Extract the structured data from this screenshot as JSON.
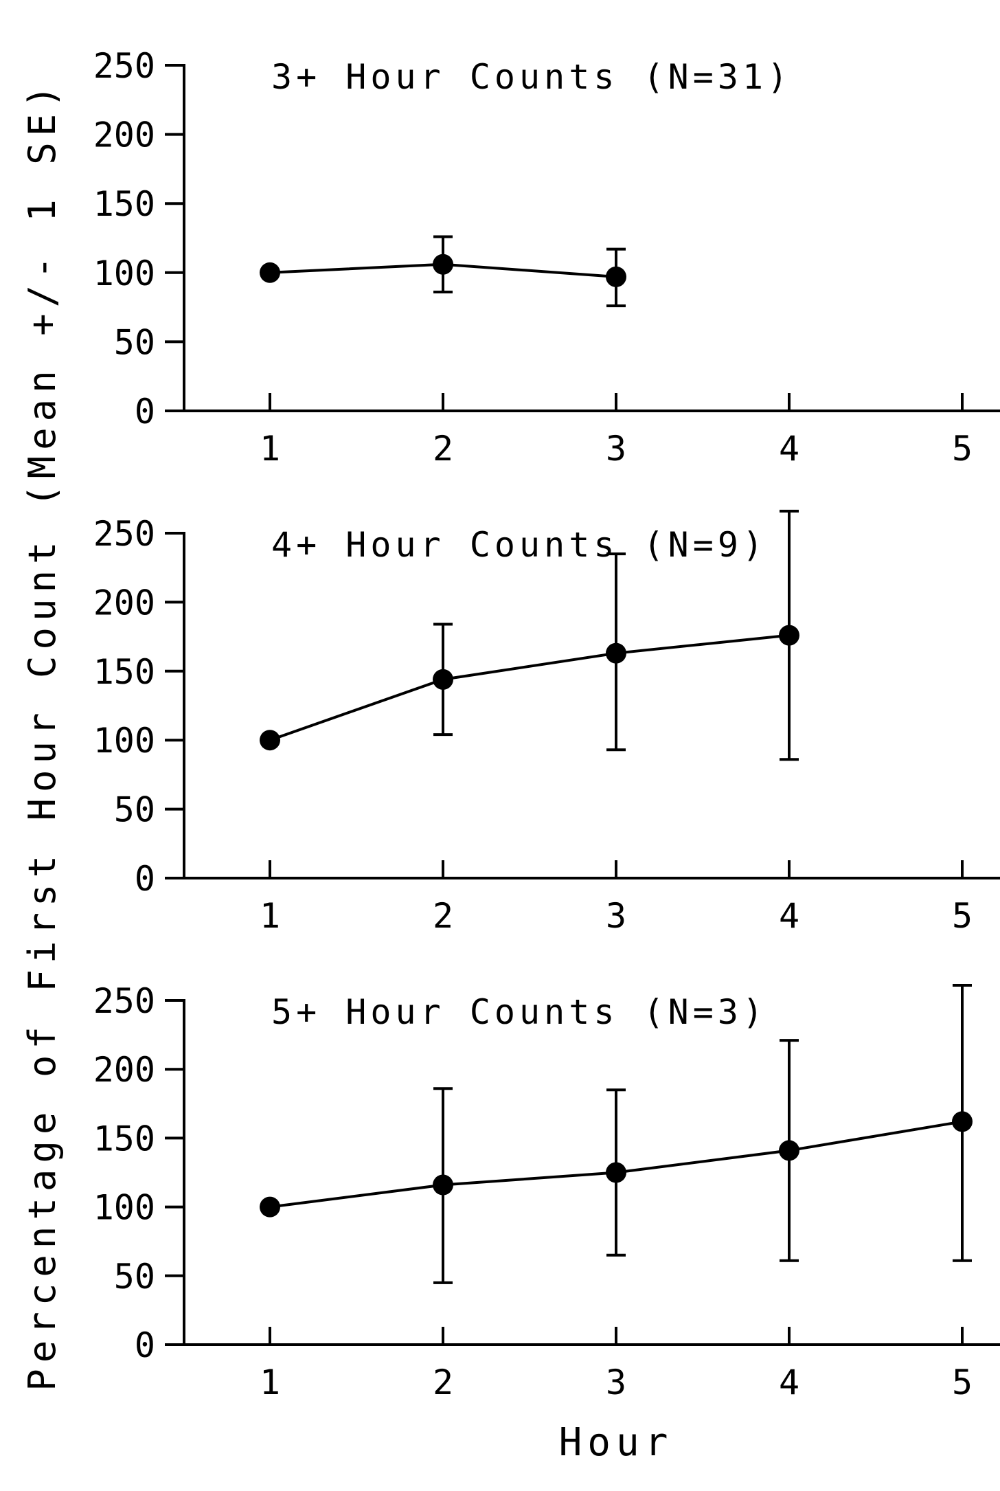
{
  "figure": {
    "ylabel": "Percentage of First Hour Count (Mean +/- 1 SE)",
    "xlabel": "Hour"
  },
  "chart_data": [
    {
      "type": "line",
      "title": "3+ Hour Counts (N=31)",
      "xlabel": "Hour",
      "ylabel": "Percentage of First Hour Count (Mean +/- 1 SE)",
      "x_ticks": [
        "1",
        "2",
        "3",
        "4",
        "5"
      ],
      "y_ticks": [
        "0",
        "50",
        "100",
        "150",
        "200",
        "250"
      ],
      "xlim": [
        0.5,
        5.2
      ],
      "ylim": [
        0,
        250
      ],
      "x": [
        1,
        2,
        3
      ],
      "values": [
        100,
        106,
        97
      ],
      "error_low": [
        100,
        86,
        76
      ],
      "error_high": [
        100,
        126,
        117
      ],
      "grid": false
    },
    {
      "type": "line",
      "title": "4+ Hour Counts (N=9)",
      "xlabel": "Hour",
      "ylabel": "Percentage of First Hour Count (Mean +/- 1 SE)",
      "x_ticks": [
        "1",
        "2",
        "3",
        "4",
        "5"
      ],
      "y_ticks": [
        "0",
        "50",
        "100",
        "150",
        "200",
        "250"
      ],
      "xlim": [
        0.5,
        5.2
      ],
      "ylim": [
        0,
        250
      ],
      "x": [
        1,
        2,
        3,
        4
      ],
      "values": [
        100,
        144,
        163,
        176
      ],
      "error_low": [
        100,
        104,
        93,
        86
      ],
      "error_high": [
        100,
        184,
        235,
        266
      ],
      "grid": false
    },
    {
      "type": "line",
      "title": "5+ Hour Counts (N=3)",
      "xlabel": "Hour",
      "ylabel": "Percentage of First Hour Count (Mean +/- 1 SE)",
      "x_ticks": [
        "1",
        "2",
        "3",
        "4",
        "5"
      ],
      "y_ticks": [
        "0",
        "50",
        "100",
        "150",
        "200",
        "250"
      ],
      "xlim": [
        0.5,
        5.2
      ],
      "ylim": [
        0,
        250
      ],
      "x": [
        1,
        2,
        3,
        4,
        5
      ],
      "values": [
        100,
        116,
        125,
        141,
        162
      ],
      "error_low": [
        100,
        45,
        65,
        61,
        61
      ],
      "error_high": [
        100,
        186,
        185,
        221,
        261
      ],
      "grid": false
    }
  ]
}
